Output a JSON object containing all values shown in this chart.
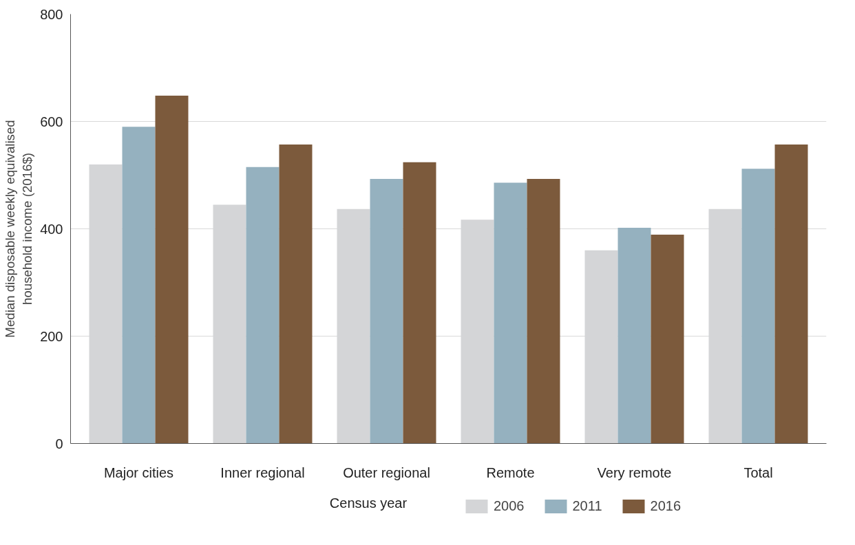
{
  "chart_data": {
    "type": "bar",
    "ylabel": "Median disposable weekly equivalised household income (2016$)",
    "legend_title": "Census year",
    "categories": [
      "Major cities",
      "Inner regional",
      "Outer regional",
      "Remote",
      "Very remote",
      "Total"
    ],
    "series": [
      {
        "name": "2006",
        "color": "#d4d5d7",
        "values": [
          520,
          445,
          437,
          417,
          360,
          437
        ]
      },
      {
        "name": "2011",
        "color": "#95b1bf",
        "values": [
          590,
          515,
          493,
          486,
          402,
          512
        ]
      },
      {
        "name": "2016",
        "color": "#7c5a3c",
        "values": [
          648,
          557,
          524,
          493,
          389,
          557
        ]
      }
    ],
    "ylim": [
      0,
      800
    ],
    "yticks": [
      0,
      200,
      400,
      600,
      800
    ],
    "grid": "y",
    "legend": "bottom"
  }
}
